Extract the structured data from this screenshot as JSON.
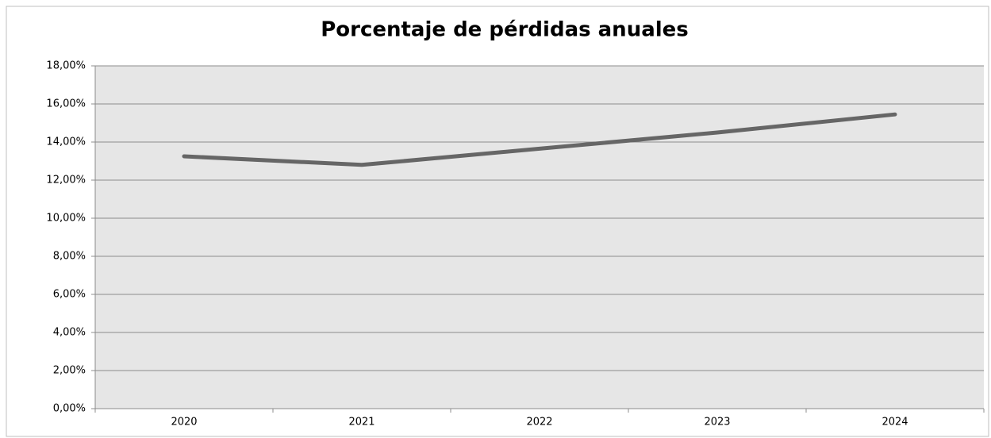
{
  "chart_data": {
    "type": "line",
    "title": "Porcentaje de pérdidas anuales",
    "categories": [
      "2020",
      "2021",
      "2022",
      "2023",
      "2024"
    ],
    "values": [
      13.25,
      12.8,
      13.65,
      14.5,
      15.45
    ],
    "color": "#666666",
    "ylim": [
      0,
      18
    ],
    "yticks": [
      {
        "value": 0,
        "label": "0,00%"
      },
      {
        "value": 2,
        "label": "2,00%"
      },
      {
        "value": 4,
        "label": "4,00%"
      },
      {
        "value": 6,
        "label": "6,00%"
      },
      {
        "value": 8,
        "label": "8,00%"
      },
      {
        "value": 10,
        "label": "10,00%"
      },
      {
        "value": 12,
        "label": "12,00%"
      },
      {
        "value": 14,
        "label": "14,00%"
      },
      {
        "value": 16,
        "label": "16,00%"
      },
      {
        "value": 18,
        "label": "18,00%"
      }
    ],
    "grid": true
  }
}
